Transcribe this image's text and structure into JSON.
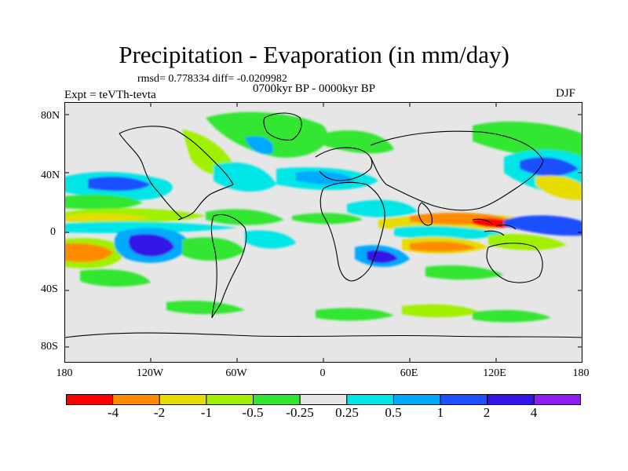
{
  "title": "Precipitation - Evaporation (in mm/day)",
  "stats": "rmsd= 0.778334 diff= -0.0209982",
  "period": "0700kyr BP - 0000kyr BP",
  "experiment": "Expt = teVTh-tevta",
  "season": "DJF",
  "axes": {
    "lat_ticks": [
      "80N",
      "40N",
      "0",
      "40S",
      "80S"
    ],
    "lon_ticks": [
      "180",
      "120W",
      "60W",
      "0",
      "60E",
      "120E",
      "180"
    ]
  },
  "colorbar": {
    "labels": [
      "-4",
      "-2",
      "-1",
      "-0.5",
      "-0.25",
      "0.25",
      "0.5",
      "1",
      "2",
      "4"
    ],
    "colors": [
      "#ff0000",
      "#ff8c00",
      "#e6dc00",
      "#a0f000",
      "#32e632",
      "#e6e6e6",
      "#00e6e6",
      "#00aaff",
      "#1e50ff",
      "#3214e6",
      "#8c1ef0"
    ]
  },
  "map_colors": {
    "ocean_neutral": "#e6e6e6",
    "coast": "#000000"
  }
}
